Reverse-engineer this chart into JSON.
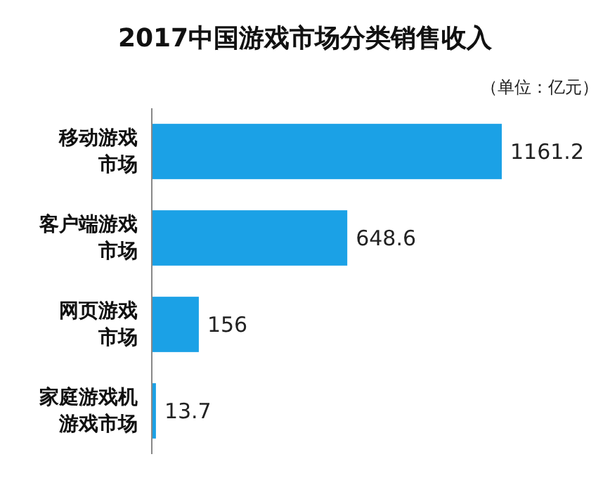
{
  "chart_data": {
    "type": "bar",
    "orientation": "horizontal",
    "title": "2017中国游戏市场分类销售收入",
    "subtitle": "（单位：亿元）",
    "categories": [
      "移动游戏市场",
      "客户端游戏市场",
      "网页游戏市场",
      "家庭游戏机游戏市场"
    ],
    "values": [
      1161.2,
      648.6,
      156,
      13.7
    ],
    "color": "#1ba1e6",
    "data_labels": true
  }
}
